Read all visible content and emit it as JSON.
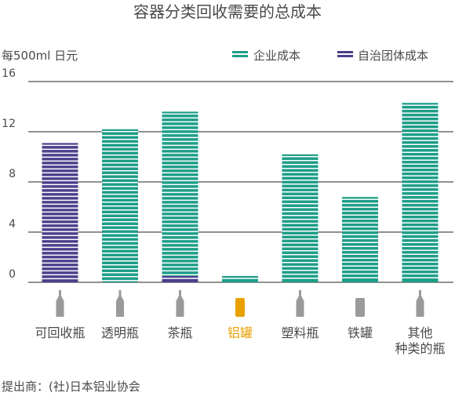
{
  "chart_data": {
    "type": "bar",
    "title": "容器分类回收需要的总成本",
    "ylabel": "每500ml 日元",
    "ylim": [
      0,
      16
    ],
    "yticks": [
      0,
      4,
      8,
      12,
      16
    ],
    "grid": true,
    "legend_position": "top-right",
    "stacked": true,
    "categories": [
      "可回收瓶",
      "透明瓶",
      "茶瓶",
      "铝罐",
      "塑料瓶",
      "铁罐",
      "其他\n种类的瓶"
    ],
    "highlight_category": "铝罐",
    "series": [
      {
        "name": "自治团体成本",
        "values": [
          11.1,
          0.0,
          0.5,
          0.0,
          0.0,
          0.0,
          0.0
        ],
        "color": "#4b3f8c"
      },
      {
        "name": "企业成本",
        "values": [
          0.0,
          12.2,
          13.1,
          0.5,
          10.2,
          6.8,
          14.3
        ],
        "color": "#1e9e88"
      }
    ],
    "source": "提出商：(社)日本铝业协会"
  },
  "colors": {
    "grid": "#222222",
    "text": "#4a4a4a",
    "highlight": "#e8a100",
    "icon": "#9a9a9a"
  },
  "icons": [
    "bottle-icon",
    "bottle-icon",
    "bottle-icon",
    "can-icon",
    "bottle-icon",
    "can-icon",
    "bottle-icon"
  ]
}
